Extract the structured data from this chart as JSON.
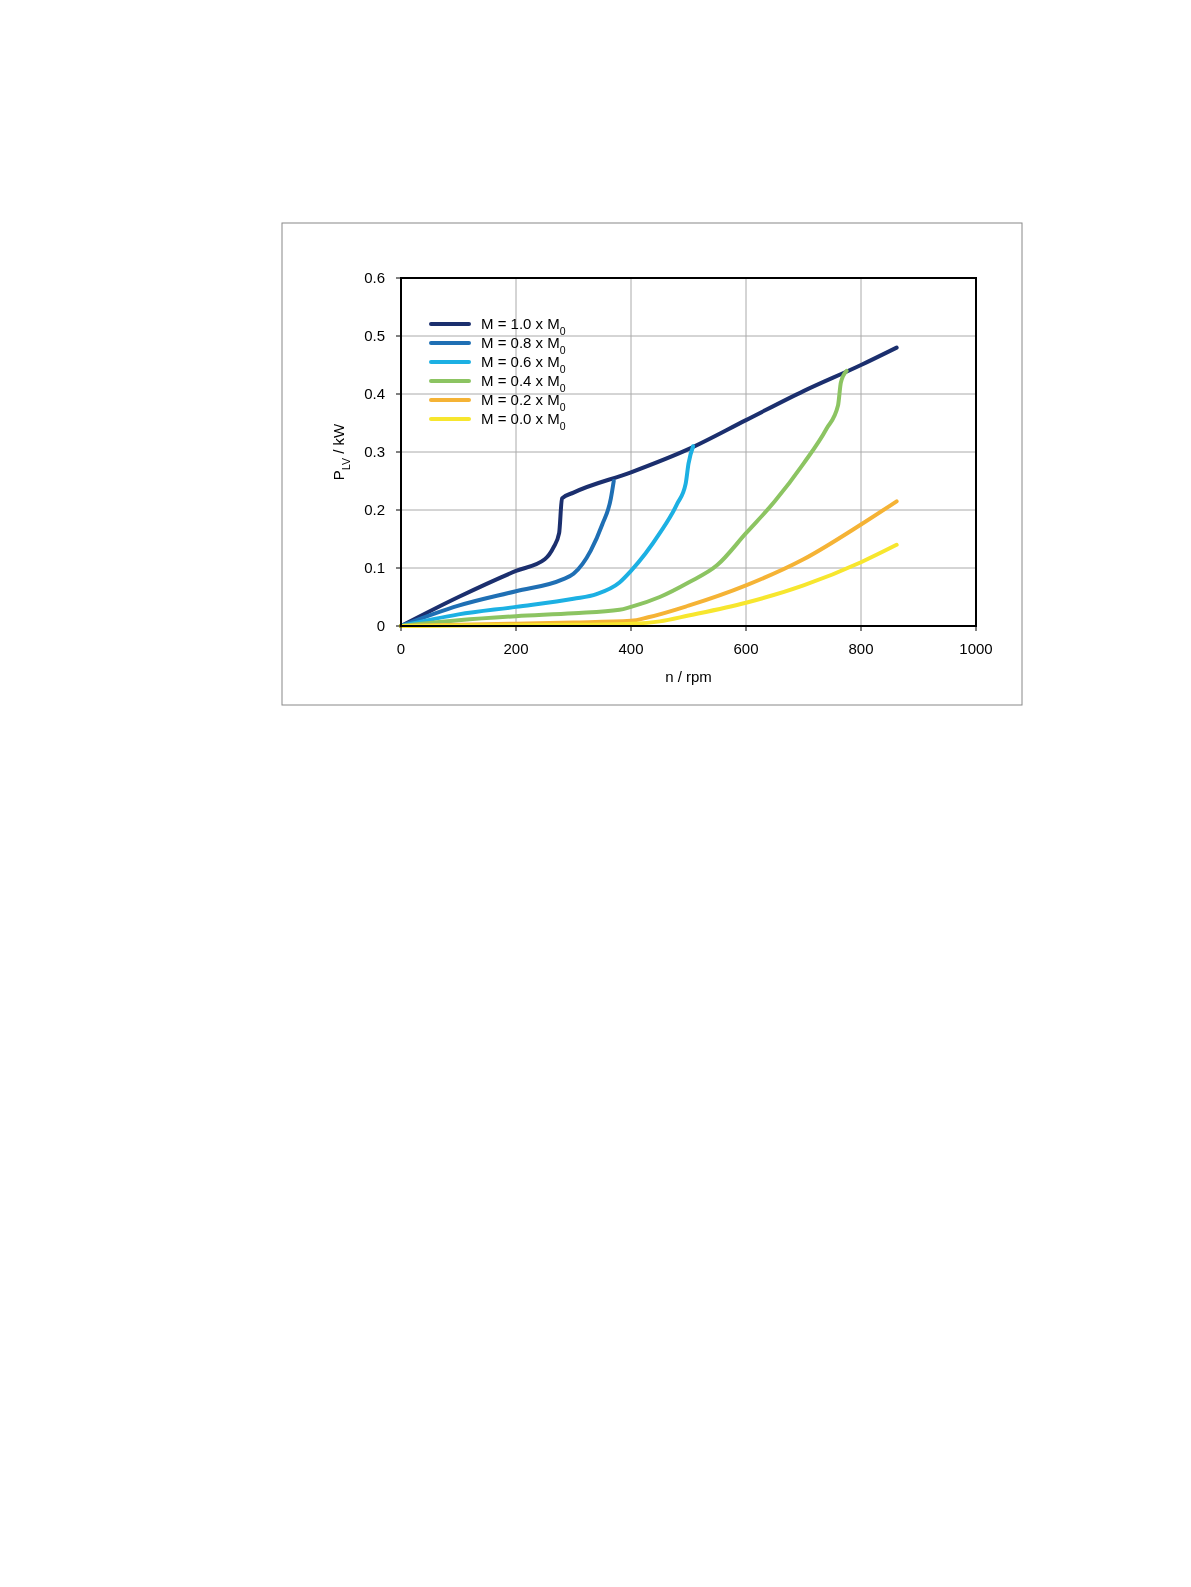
{
  "chart_data": {
    "type": "line",
    "xlabel": "n / rpm",
    "ylabel": "P$_{LV}$ / kW",
    "xlim": [
      0,
      1000
    ],
    "ylim": [
      0,
      0.6
    ],
    "xticks": [
      0,
      200,
      400,
      600,
      800,
      1000
    ],
    "yticks": [
      0,
      0.1,
      0.2,
      0.3,
      0.4,
      0.5,
      0.6
    ],
    "grid": true,
    "legend": "top left",
    "marker": "none",
    "line_style": "solid",
    "series": [
      {
        "name": "M = 1.0 x M$_{0}$",
        "color": "#1b2f6e",
        "x": [
          0,
          100,
          200,
          250,
          265,
          275,
          280,
          300,
          400,
          500,
          600,
          700,
          800,
          862
        ],
        "values": [
          0,
          0.05,
          0.095,
          0.115,
          0.135,
          0.16,
          0.22,
          0.23,
          0.265,
          0.305,
          0.355,
          0.405,
          0.45,
          0.48
        ]
      },
      {
        "name": "M = 0.8 x M$_{0}$",
        "color": "#1f6fb4",
        "x": [
          0,
          100,
          200,
          280,
          300,
          330,
          350,
          365,
          370
        ],
        "values": [
          0,
          0.035,
          0.06,
          0.08,
          0.09,
          0.13,
          0.175,
          0.22,
          0.25
        ]
      },
      {
        "name": "M = 0.6 x M$_{0}$",
        "color": "#1cb0e3",
        "x": [
          0,
          100,
          200,
          300,
          340,
          380,
          400,
          450,
          480,
          495,
          500,
          508
        ],
        "values": [
          0,
          0.02,
          0.033,
          0.047,
          0.055,
          0.075,
          0.095,
          0.16,
          0.21,
          0.245,
          0.28,
          0.31
        ]
      },
      {
        "name": "M = 0.4 x M$_{0}$",
        "color": "#8cc462",
        "x": [
          0,
          100,
          200,
          300,
          380,
          400,
          450,
          500,
          550,
          600,
          650,
          700,
          740,
          760,
          765,
          775
        ],
        "values": [
          0,
          0.01,
          0.017,
          0.022,
          0.028,
          0.033,
          0.05,
          0.075,
          0.105,
          0.16,
          0.215,
          0.28,
          0.34,
          0.38,
          0.42,
          0.44
        ]
      },
      {
        "name": "M = 0.2 x M$_{0}$",
        "color": "#f5b335",
        "x": [
          0,
          200,
          300,
          400,
          430,
          500,
          600,
          700,
          800,
          862
        ],
        "values": [
          0,
          0.004,
          0.006,
          0.009,
          0.015,
          0.035,
          0.07,
          0.115,
          0.175,
          0.215
        ]
      },
      {
        "name": "M = 0.0 x M$_{0}$",
        "color": "#f7e62e",
        "x": [
          0,
          300,
          400,
          450,
          500,
          600,
          700,
          800,
          862
        ],
        "values": [
          0,
          0.002,
          0.004,
          0.008,
          0.018,
          0.04,
          0.07,
          0.11,
          0.14
        ]
      }
    ]
  }
}
